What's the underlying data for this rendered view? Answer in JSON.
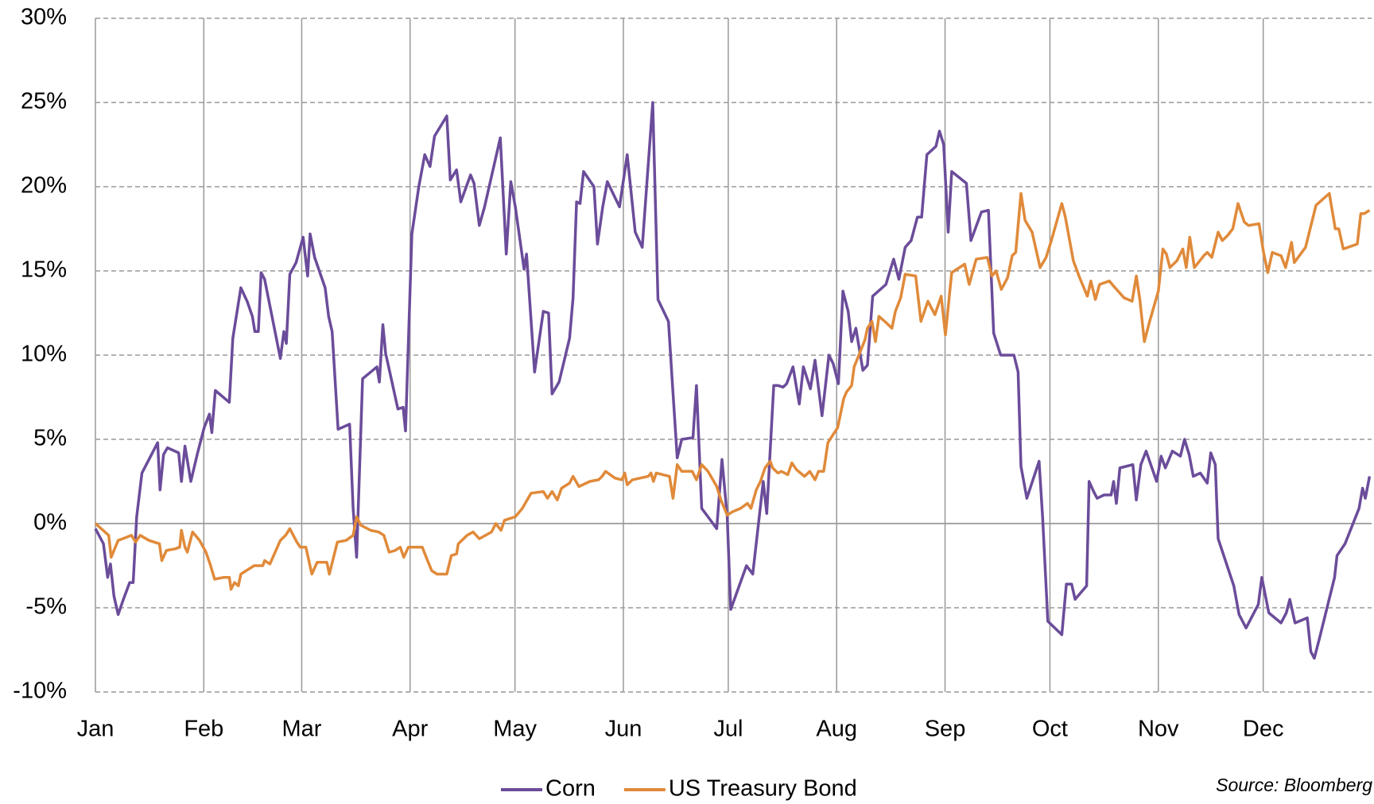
{
  "chart_data": {
    "type": "line",
    "source": "Source:  Bloomberg",
    "xlim": [
      0,
      365
    ],
    "xticks": [
      {
        "value": 0,
        "label": "Jan"
      },
      {
        "value": 31,
        "label": "Feb"
      },
      {
        "value": 59,
        "label": "Mar"
      },
      {
        "value": 90,
        "label": "Apr"
      },
      {
        "value": 120,
        "label": "May"
      },
      {
        "value": 151,
        "label": "Jun"
      },
      {
        "value": 181,
        "label": "Jul"
      },
      {
        "value": 212,
        "label": "Aug"
      },
      {
        "value": 243,
        "label": "Sep"
      },
      {
        "value": 273,
        "label": "Oct"
      },
      {
        "value": 304,
        "label": "Nov"
      },
      {
        "value": 334,
        "label": "Dec"
      }
    ],
    "ylim": [
      -10,
      30
    ],
    "yticks": [
      {
        "value": -10,
        "label": "-10%"
      },
      {
        "value": -5,
        "label": "-5%"
      },
      {
        "value": 0,
        "label": "0%"
      },
      {
        "value": 5,
        "label": "5%"
      },
      {
        "value": 10,
        "label": "10%"
      },
      {
        "value": 15,
        "label": "15%"
      },
      {
        "value": 20,
        "label": "20%"
      },
      {
        "value": 25,
        "label": "25%"
      },
      {
        "value": 30,
        "label": "30%"
      }
    ],
    "grid": true,
    "legend": "bottom",
    "series": [
      {
        "name": "Corn",
        "color": "#6b4c9a",
        "x": [
          0.0,
          2.3,
          3.5,
          4.3,
          5.3,
          6.5,
          8.0,
          9.8,
          10.8,
          11.8,
          13.3,
          15.3,
          17.8,
          18.5,
          19.5,
          20.6,
          23.8,
          24.6,
          25.6,
          27.3,
          29.1,
          31.1,
          32.6,
          33.3,
          34.3,
          38.3,
          39.3,
          41.6,
          43.4,
          44.9,
          45.6,
          46.6,
          47.4,
          48.4,
          52.9,
          53.9,
          54.6,
          55.6,
          57.4,
          59.4,
          60.7,
          61.4,
          62.7,
          65.7,
          66.7,
          67.7,
          69.4,
          72.7,
          73.7,
          74.7,
          76.4,
          80.5,
          81.2,
          82.2,
          83.0,
          84.2,
          86.5,
          88.0,
          88.7,
          90.5,
          92.5,
          94.2,
          95.7,
          97.0,
          100.5,
          101.5,
          103.3,
          104.5,
          107.3,
          108.3,
          109.8,
          111.3,
          115.8,
          117.5,
          118.8,
          120.1,
          122.6,
          123.3,
          125.6,
          128.1,
          129.6,
          130.6,
          132.6,
          135.6,
          136.6,
          137.6,
          138.6,
          139.6,
          142.6,
          143.6,
          145.1,
          146.4,
          149.9,
          152.1,
          154.4,
          156.4,
          159.4,
          160.9,
          163.9,
          164.9,
          166.4,
          167.7,
          170.9,
          171.9,
          173.4,
          175.2,
          177.7,
          179.2,
          180.7,
          181.7,
          186.2,
          188.0,
          191.0,
          192.0,
          194.0,
          195.2,
          196.7,
          197.7,
          199.5,
          201.3,
          202.5,
          204.5,
          205.8,
          207.8,
          209.8,
          211.0,
          212.5,
          213.8,
          215.3,
          216.3,
          217.5,
          219.5,
          220.8,
          222.3,
          226.1,
          227.1,
          228.3,
          229.8,
          231.6,
          233.3,
          235.1,
          236.3,
          237.8,
          240.4,
          241.4,
          242.6,
          243.9,
          244.9,
          249.1,
          250.4,
          253.4,
          255.4,
          256.9,
          258.9,
          262.7,
          263.9,
          264.7,
          266.4,
          269.9,
          270.9,
          272.4,
          276.4,
          277.7,
          279.2,
          280.2,
          283.5,
          284.2,
          285.5,
          286.5,
          288.5,
          290.5,
          291.2,
          292.0,
          293.0,
          296.7,
          297.7,
          299.0,
          300.5,
          303.5,
          304.8,
          306.0,
          308.0,
          310.3,
          311.5,
          312.8,
          314.0,
          316.0,
          318.0,
          319.0,
          320.3,
          321.1,
          325.6,
          327.1,
          329.1,
          332.6,
          333.6,
          335.6,
          339.1,
          340.6,
          341.6,
          343.1,
          346.6,
          347.6,
          348.6,
          350.1,
          354.4,
          355.1,
          357.4,
          361.4,
          362.4,
          363.2,
          364.4
        ],
        "values": [
          -0.3,
          -1.2,
          -3.2,
          -2.4,
          -4.3,
          -5.4,
          -4.5,
          -3.5,
          -3.5,
          0.4,
          3.0,
          3.8,
          4.8,
          2.0,
          4.1,
          4.5,
          4.2,
          2.5,
          4.6,
          2.5,
          4.1,
          5.7,
          6.5,
          5.4,
          7.9,
          7.2,
          11.0,
          14.0,
          13.2,
          12.3,
          11.4,
          11.4,
          14.9,
          14.5,
          9.8,
          11.4,
          10.7,
          14.8,
          15.5,
          17.0,
          14.7,
          17.2,
          15.8,
          14.0,
          12.3,
          11.4,
          5.6,
          5.9,
          0.9,
          -2.0,
          8.6,
          9.3,
          8.4,
          11.8,
          10.1,
          9.0,
          6.8,
          6.9,
          5.5,
          17.2,
          20.0,
          21.9,
          21.2,
          23.0,
          24.2,
          20.4,
          21.0,
          19.1,
          20.7,
          20.2,
          17.7,
          18.8,
          22.9,
          16.0,
          20.3,
          18.8,
          15.1,
          16.0,
          9.0,
          12.6,
          12.5,
          7.7,
          8.4,
          11.0,
          13.4,
          19.1,
          19.0,
          20.9,
          20.0,
          16.6,
          18.8,
          20.3,
          18.8,
          21.9,
          17.3,
          16.4,
          25.0,
          13.3,
          12.0,
          8.7,
          3.9,
          5.0,
          5.1,
          8.2,
          0.9,
          0.4,
          -0.3,
          3.8,
          0.4,
          -5.1,
          -2.5,
          -3.0,
          2.5,
          0.6,
          8.2,
          8.2,
          8.1,
          8.3,
          9.3,
          7.1,
          9.3,
          8.0,
          9.7,
          6.4,
          10.0,
          9.5,
          8.3,
          13.8,
          12.6,
          10.8,
          11.6,
          9.1,
          9.4,
          13.5,
          14.2,
          14.9,
          15.7,
          14.5,
          16.4,
          16.8,
          18.2,
          18.2,
          21.9,
          22.4,
          23.3,
          22.5,
          17.3,
          20.9,
          20.2,
          16.8,
          18.5,
          18.6,
          11.3,
          10.0,
          10.0,
          9.0,
          3.4,
          1.5,
          3.7,
          0.4,
          -5.8,
          -6.6,
          -3.6,
          -3.6,
          -4.5,
          -3.7,
          2.5,
          1.9,
          1.5,
          1.7,
          1.7,
          2.5,
          1.2,
          3.3,
          3.5,
          1.4,
          3.5,
          4.3,
          2.5,
          4.0,
          3.3,
          4.3,
          4.0,
          5.0,
          4.1,
          2.8,
          3.0,
          2.4,
          4.2,
          3.5,
          -0.9,
          -3.7,
          -5.4,
          -6.2,
          -4.8,
          -3.2,
          -5.3,
          -5.9,
          -5.3,
          -4.5,
          -5.9,
          -5.6,
          -7.6,
          -8.0,
          -6.8,
          -3.2,
          -1.9,
          -1.2,
          0.9,
          2.1,
          1.5,
          2.8
        ]
      },
      {
        "name": "US Treasury Bond",
        "color": "#e08a3a",
        "x": [
          0.0,
          3.8,
          4.5,
          6.5,
          7.8,
          10.3,
          11.5,
          12.8,
          15.3,
          18.3,
          19.0,
          20.3,
          22.8,
          24.1,
          24.6,
          25.6,
          26.3,
          27.8,
          29.8,
          31.6,
          32.8,
          34.1,
          36.6,
          38.3,
          38.8,
          39.8,
          40.9,
          41.6,
          45.4,
          47.9,
          48.4,
          49.9,
          52.9,
          54.4,
          55.6,
          57.6,
          58.6,
          60.2,
          61.9,
          63.4,
          66.2,
          66.9,
          69.2,
          71.7,
          73.7,
          74.7,
          75.9,
          78.7,
          81.0,
          82.5,
          84.0,
          85.7,
          87.2,
          88.2,
          89.5,
          93.5,
          95.0,
          96.2,
          97.7,
          100.5,
          101.8,
          103.3,
          103.8,
          105.3,
          106.3,
          108.0,
          109.8,
          113.3,
          114.5,
          116.0,
          117.0,
          120.1,
          122.1,
          124.6,
          128.1,
          129.3,
          130.6,
          132.1,
          133.3,
          135.6,
          136.6,
          138.3,
          141.4,
          143.9,
          144.9,
          145.9,
          148.6,
          150.6,
          151.4,
          152.1,
          153.6,
          158.1,
          158.9,
          159.6,
          160.4,
          164.2,
          165.2,
          166.4,
          167.7,
          170.7,
          171.9,
          173.4,
          175.2,
          177.7,
          178.9,
          180.7,
          182.2,
          184.5,
          186.5,
          187.5,
          189.0,
          190.2,
          191.5,
          193.0,
          193.7,
          195.2,
          196.2,
          198.0,
          199.2,
          200.5,
          202.8,
          204.3,
          205.8,
          206.8,
          208.3,
          209.5,
          212.3,
          213.3,
          214.0,
          214.8,
          216.3,
          217.0,
          220.1,
          220.8,
          222.1,
          223.1,
          224.1,
          226.3,
          227.8,
          228.8,
          230.3,
          231.6,
          234.6,
          236.1,
          238.1,
          240.1,
          241.9,
          243.1,
          244.9,
          248.6,
          249.9,
          251.9,
          255.1,
          256.4,
          257.6,
          259.1,
          260.9,
          262.2,
          263.2,
          264.7,
          265.9,
          267.9,
          270.2,
          271.9,
          273.4,
          276.4,
          277.4,
          279.7,
          281.5,
          283.7,
          284.7,
          286.0,
          287.2,
          290.0,
          291.2,
          294.2,
          296.5,
          297.7,
          298.7,
          300.0,
          301.5,
          304.0,
          305.3,
          306.3,
          307.3,
          309.3,
          311.0,
          312.0,
          313.0,
          314.3,
          317.0,
          318.0,
          319.3,
          321.1,
          322.3,
          323.8,
          325.3,
          326.8,
          328.6,
          329.8,
          332.8,
          334.1,
          335.3,
          336.6,
          339.1,
          340.4,
          342.1,
          342.9,
          346.1,
          349.1,
          352.9,
          354.6,
          355.6,
          356.9,
          360.9,
          361.9,
          362.9,
          364.4
        ],
        "values": [
          0,
          -0.7,
          -2.0,
          -1.0,
          -0.9,
          -0.7,
          -1.1,
          -0.7,
          -1.0,
          -1.2,
          -2.2,
          -1.6,
          -1.5,
          -1.4,
          -0.4,
          -1.4,
          -1.7,
          -0.5,
          -1.0,
          -1.7,
          -2.4,
          -3.3,
          -3.2,
          -3.2,
          -3.9,
          -3.5,
          -3.7,
          -3.0,
          -2.5,
          -2.5,
          -2.2,
          -2.4,
          -1.0,
          -0.7,
          -0.3,
          -1.1,
          -1.4,
          -1.4,
          -3.0,
          -2.3,
          -2.3,
          -3.0,
          -1.1,
          -1.0,
          -0.7,
          0.4,
          -0.1,
          -0.4,
          -0.5,
          -0.7,
          -1.7,
          -1.6,
          -1.4,
          -2.0,
          -1.4,
          -1.4,
          -2.2,
          -2.8,
          -3.0,
          -3.0,
          -1.9,
          -1.8,
          -1.2,
          -0.9,
          -0.7,
          -0.5,
          -0.9,
          -0.5,
          0.0,
          -0.4,
          0.2,
          0.4,
          0.9,
          1.8,
          1.9,
          1.5,
          1.9,
          1.4,
          2.1,
          2.4,
          2.8,
          2.2,
          2.5,
          2.6,
          2.8,
          3.1,
          2.7,
          2.6,
          3.0,
          2.3,
          2.6,
          2.8,
          3.0,
          2.5,
          3.0,
          2.8,
          1.5,
          3.5,
          3.1,
          3.1,
          2.6,
          3.5,
          3.1,
          2.2,
          1.4,
          0.5,
          0.7,
          0.9,
          1.2,
          0.9,
          2.0,
          2.5,
          3.3,
          3.7,
          3.3,
          3.0,
          3.1,
          2.9,
          3.6,
          3.2,
          2.8,
          3.1,
          2.6,
          3.1,
          3.1,
          4.8,
          5.7,
          6.7,
          7.4,
          7.8,
          8.2,
          9.3,
          10.9,
          11.6,
          12.0,
          10.8,
          12.3,
          11.9,
          11.6,
          12.6,
          13.4,
          14.8,
          14.7,
          12.0,
          13.2,
          12.4,
          13.5,
          11.2,
          14.9,
          15.4,
          14.2,
          15.7,
          15.8,
          14.7,
          15.0,
          13.9,
          14.6,
          15.9,
          16.1,
          19.6,
          18.0,
          17.3,
          15.2,
          15.8,
          16.8,
          19.0,
          18.2,
          15.6,
          14.6,
          13.5,
          14.4,
          13.3,
          14.2,
          14.4,
          14.1,
          13.4,
          13.2,
          14.7,
          13.3,
          10.8,
          12.0,
          13.8,
          16.3,
          16.0,
          15.2,
          15.6,
          16.3,
          15.2,
          17.0,
          15.2,
          15.9,
          16.1,
          15.8,
          17.3,
          16.8,
          17.1,
          17.5,
          19.0,
          17.9,
          17.7,
          17.8,
          16.1,
          14.9,
          16.1,
          15.9,
          15.2,
          16.7,
          15.5,
          16.4,
          18.9,
          19.6,
          17.5,
          17.5,
          16.3,
          16.6,
          18.4,
          18.4,
          18.6
        ]
      }
    ]
  }
}
